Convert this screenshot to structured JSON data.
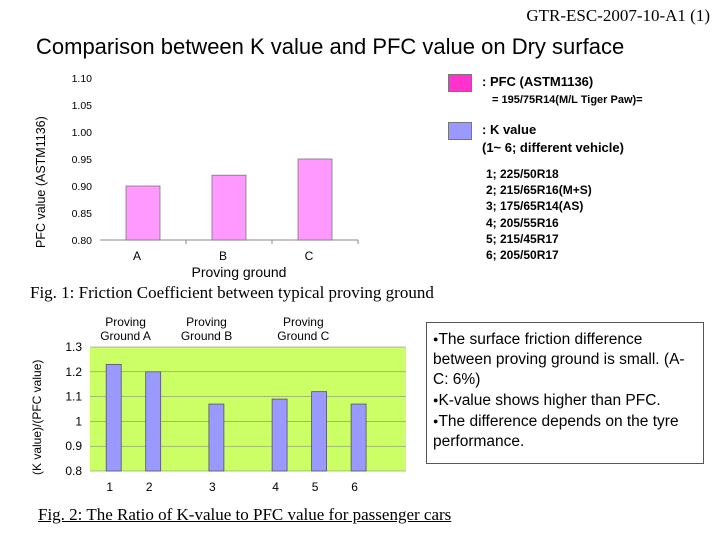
{
  "doc_id": "GTR-ESC-2007-10-A1 (1)",
  "title": "Comparison between K value and PFC value on Dry surface",
  "legend": {
    "pfc_label": ": PFC (ASTM1136)",
    "pfc_tyre": "= 195/75R14(M/L  Tiger Paw)=",
    "k_label": ": K value",
    "k_sub": "(1~ 6; different vehicle)",
    "pfc_color": "#ff33cc",
    "k_color": "#9999ff"
  },
  "tyres": [
    "1; 225/50R18",
    "2; 215/65R16(M+S)",
    "3; 175/65R14(AS)",
    "4; 205/55R16",
    "5; 215/45R17",
    "6; 205/50R17"
  ],
  "fig1_caption": "Fig. 1: Friction Coefficient between typical proving ground",
  "fig2_caption": "Fig. 2: The Ratio of K-value to PFC value for passenger cars",
  "notes": [
    "The surface friction difference between proving ground is small. (A-C: 6%)",
    "K-value shows higher than PFC.",
    "The difference depends on the tyre performance."
  ],
  "chart_data": [
    {
      "type": "bar",
      "xlabel": "Proving ground",
      "ylabel": "PFC value (ASTM1136)",
      "categories": [
        "A",
        "B",
        "C"
      ],
      "series": [
        {
          "name": "PFC (ASTM1136)",
          "values": [
            0.9,
            0.92,
            0.95
          ]
        }
      ],
      "ylim": [
        0.8,
        1.1
      ],
      "yticks": [
        "0.80",
        "0.85",
        "0.90",
        "0.95",
        "1.00",
        "1.05",
        "1.10"
      ],
      "grid": false,
      "bar_color": "#ff99ff"
    },
    {
      "type": "bar",
      "ylabel": "(K value)/(PFC value)",
      "categories": [
        "1",
        "2",
        "3",
        "4",
        "5",
        "6"
      ],
      "series": [
        {
          "name": "K value",
          "values": [
            1.23,
            1.2,
            1.07,
            1.09,
            1.12,
            1.07
          ]
        }
      ],
      "ylim": [
        0.8,
        1.3
      ],
      "yticks": [
        "0.8",
        "0.9",
        "1",
        "1.1",
        "1.2",
        "1.3"
      ],
      "groups": [
        {
          "label": "Proving Ground A",
          "bars": [
            "1",
            "2"
          ]
        },
        {
          "label": "Proving Ground B",
          "bars": [
            "3"
          ]
        },
        {
          "label": "Proving Ground C",
          "bars": [
            "4",
            "5",
            "6"
          ]
        }
      ],
      "bar_color": "#9999ff",
      "background_color": "#ccff66"
    }
  ]
}
